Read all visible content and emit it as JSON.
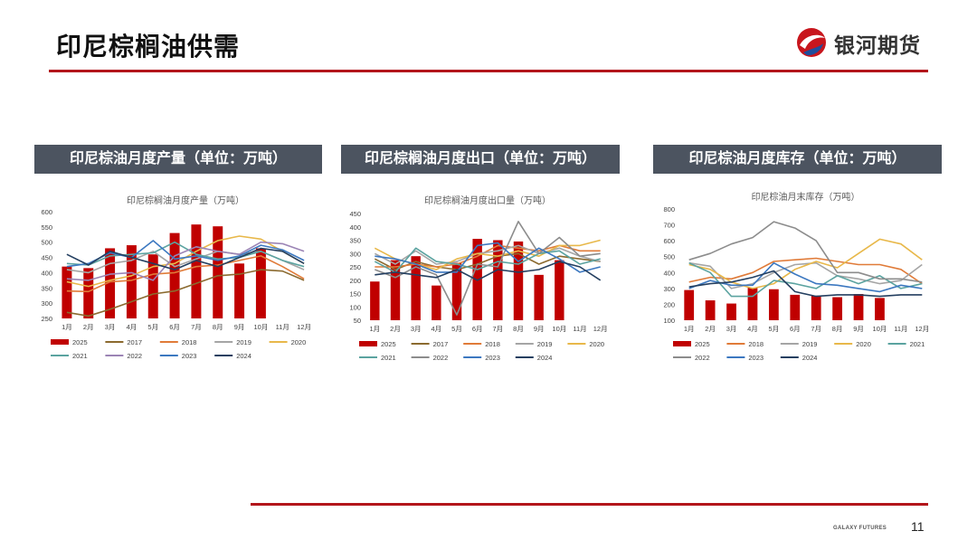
{
  "page": {
    "title": "印尼棕榈油供需",
    "brand": "银河期货",
    "footer_brand": "GALAXY FUTURES",
    "page_number": "11",
    "accent_color": "#b3161b",
    "header_color": "#4c5460"
  },
  "panels": [
    {
      "header": "印尼棕油月度产量（单位：万吨）"
    },
    {
      "header": "印尼棕榈油月度出口（单位：万吨）"
    },
    {
      "header": "印尼棕油月度库存（单位：万吨）"
    }
  ],
  "chart_data": [
    {
      "type": "bar+line",
      "title": "印尼棕榈油月度产量（万吨）",
      "categories": [
        "1月",
        "2月",
        "3月",
        "4月",
        "5月",
        "6月",
        "7月",
        "8月",
        "9月",
        "10月",
        "11月",
        "12月"
      ],
      "ylim": [
        250,
        600
      ],
      "yticks": [
        250,
        300,
        350,
        400,
        450,
        500,
        550,
        600
      ],
      "bar_series": {
        "name": "2025",
        "color": "#c00000",
        "values": [
          420,
          415,
          480,
          490,
          460,
          530,
          558,
          552,
          430,
          480,
          null,
          null
        ]
      },
      "series": [
        {
          "name": "2017",
          "color": "#8b6a2f",
          "values": [
            270,
            258,
            280,
            305,
            330,
            340,
            365,
            390,
            395,
            410,
            405,
            375
          ]
        },
        {
          "name": "2018",
          "color": "#e07b39",
          "values": [
            340,
            338,
            370,
            375,
            395,
            400,
            420,
            425,
            440,
            455,
            420,
            380
          ]
        },
        {
          "name": "2019",
          "color": "#a5a5a5",
          "values": [
            410,
            400,
            430,
            440,
            470,
            420,
            445,
            470,
            460,
            470,
            440,
            410
          ]
        },
        {
          "name": "2020",
          "color": "#e8b84a",
          "values": [
            370,
            355,
            375,
            390,
            420,
            430,
            470,
            505,
            520,
            510,
            470,
            430
          ]
        },
        {
          "name": "2021",
          "color": "#5ba3a0",
          "values": [
            430,
            425,
            455,
            460,
            465,
            500,
            460,
            445,
            450,
            470,
            440,
            420
          ]
        },
        {
          "name": "2022",
          "color": "#9b84b5",
          "values": [
            380,
            375,
            395,
            400,
            375,
            455,
            485,
            470,
            460,
            500,
            495,
            470
          ]
        },
        {
          "name": "2023",
          "color": "#3c78c0",
          "values": [
            420,
            430,
            465,
            450,
            505,
            445,
            455,
            440,
            455,
            490,
            475,
            440
          ]
        },
        {
          "name": "2024",
          "color": "#243f60",
          "values": [
            460,
            425,
            470,
            450,
            430,
            410,
            440,
            420,
            450,
            480,
            470,
            430
          ]
        }
      ]
    },
    {
      "type": "bar+line",
      "title": "印尼棕榈油月度出口量（万吨）",
      "categories": [
        "1月",
        "2月",
        "3月",
        "4月",
        "5月",
        "6月",
        "7月",
        "8月",
        "9月",
        "10月",
        "11月",
        "12月"
      ],
      "ylim": [
        50,
        450
      ],
      "yticks": [
        50,
        100,
        150,
        200,
        250,
        300,
        350,
        400,
        450
      ],
      "bar_series": {
        "name": "2025",
        "color": "#c00000",
        "values": [
          195,
          275,
          290,
          180,
          265,
          355,
          350,
          345,
          220,
          275,
          null,
          null
        ]
      },
      "series": [
        {
          "name": "2017",
          "color": "#8b6a2f",
          "values": [
            280,
            240,
            270,
            250,
            240,
            260,
            290,
            300,
            260,
            290,
            280,
            270
          ]
        },
        {
          "name": "2018",
          "color": "#e07b39",
          "values": [
            250,
            250,
            260,
            250,
            260,
            290,
            330,
            320,
            310,
            330,
            310,
            310
          ]
        },
        {
          "name": "2019",
          "color": "#a5a5a5",
          "values": [
            300,
            260,
            310,
            260,
            270,
            300,
            310,
            330,
            300,
            320,
            290,
            270
          ]
        },
        {
          "name": "2020",
          "color": "#e8b84a",
          "values": [
            320,
            280,
            260,
            240,
            280,
            300,
            290,
            310,
            290,
            330,
            330,
            350
          ]
        },
        {
          "name": "2021",
          "color": "#5ba3a0",
          "values": [
            270,
            230,
            320,
            270,
            260,
            240,
            270,
            260,
            300,
            310,
            260,
            280
          ]
        },
        {
          "name": "2022",
          "color": "#8c8c8c",
          "values": [
            240,
            210,
            250,
            220,
            70,
            260,
            250,
            420,
            300,
            360,
            290,
            300
          ]
        },
        {
          "name": "2023",
          "color": "#3c78c0",
          "values": [
            290,
            280,
            260,
            230,
            230,
            330,
            340,
            270,
            320,
            280,
            230,
            250
          ]
        },
        {
          "name": "2024",
          "color": "#243f60",
          "values": [
            220,
            230,
            220,
            210,
            240,
            200,
            240,
            230,
            240,
            270,
            250,
            200
          ]
        }
      ]
    },
    {
      "type": "bar+line",
      "title": "印尼棕油月末库存（万吨）",
      "categories": [
        "1月",
        "2月",
        "3月",
        "4月",
        "5月",
        "6月",
        "7月",
        "8月",
        "9月",
        "10月",
        "11月",
        "12月"
      ],
      "ylim": [
        100,
        800
      ],
      "yticks": [
        100,
        200,
        300,
        400,
        500,
        600,
        700,
        800
      ],
      "bar_series": {
        "name": "2025",
        "color": "#c00000",
        "values": [
          290,
          225,
          205,
          305,
          295,
          260,
          255,
          245,
          265,
          240,
          null,
          null
        ]
      },
      "series": [
        {
          "name": "2018",
          "color": "#e07b39",
          "values": [
            340,
            370,
            360,
            400,
            470,
            480,
            490,
            470,
            450,
            450,
            420,
            330
          ]
        },
        {
          "name": "2019",
          "color": "#a5a5a5",
          "values": [
            460,
            440,
            300,
            330,
            400,
            450,
            460,
            380,
            360,
            330,
            350,
            450
          ]
        },
        {
          "name": "2020",
          "color": "#e8b84a",
          "values": [
            450,
            420,
            340,
            300,
            330,
            420,
            470,
            430,
            520,
            610,
            580,
            480
          ]
        },
        {
          "name": "2021",
          "color": "#5ba3a0",
          "values": [
            460,
            400,
            250,
            250,
            350,
            330,
            300,
            380,
            330,
            380,
            300,
            330
          ]
        },
        {
          "name": "2022",
          "color": "#8c8c8c",
          "values": [
            480,
            520,
            580,
            620,
            720,
            680,
            600,
            400,
            400,
            360,
            360,
            340
          ]
        },
        {
          "name": "2023",
          "color": "#3c78c0",
          "values": [
            300,
            350,
            320,
            320,
            460,
            390,
            330,
            320,
            300,
            280,
            320,
            300
          ]
        },
        {
          "name": "2024",
          "color": "#243f60",
          "values": [
            310,
            330,
            340,
            370,
            410,
            280,
            250,
            260,
            260,
            250,
            260,
            260
          ]
        }
      ]
    }
  ]
}
